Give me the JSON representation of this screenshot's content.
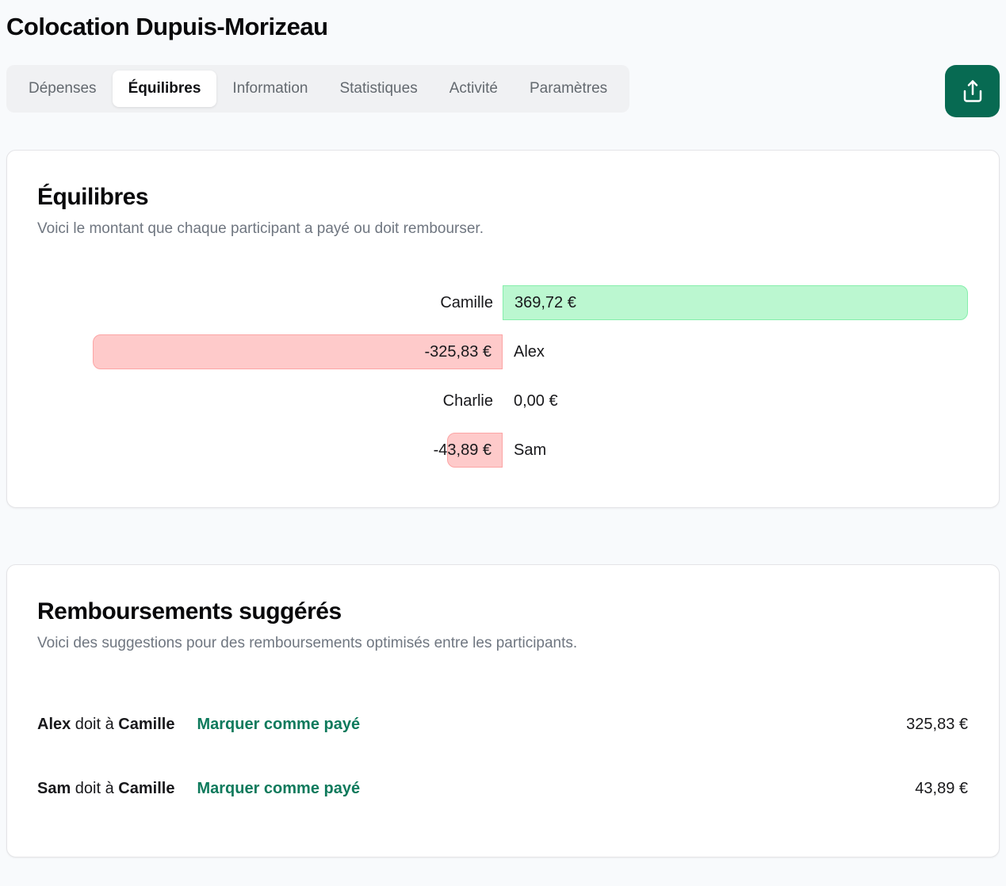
{
  "page": {
    "title": "Colocation Dupuis-Morizeau"
  },
  "tabs": [
    {
      "id": "depenses",
      "label": "Dépenses",
      "active": false
    },
    {
      "id": "equilibres",
      "label": "Équilibres",
      "active": true
    },
    {
      "id": "information",
      "label": "Information",
      "active": false
    },
    {
      "id": "statistiques",
      "label": "Statistiques",
      "active": false
    },
    {
      "id": "activite",
      "label": "Activité",
      "active": false
    },
    {
      "id": "parametres",
      "label": "Paramètres",
      "active": false
    }
  ],
  "share_button": {
    "icon": "share-upload-icon",
    "background": "#076a52"
  },
  "balances": {
    "title": "Équilibres",
    "subtitle": "Voici le montant que chaque participant a payé ou doit rembourser.",
    "max_abs_value": 369.72,
    "rows": [
      {
        "name": "Camille",
        "value": 369.72,
        "amount_label": "369,72 €"
      },
      {
        "name": "Alex",
        "value": -325.83,
        "amount_label": "-325,83 €"
      },
      {
        "name": "Charlie",
        "value": 0,
        "amount_label": "0,00 €"
      },
      {
        "name": "Sam",
        "value": -43.89,
        "amount_label": "-43,89 €"
      }
    ],
    "colors": {
      "positive_fill": "#bbf7d0",
      "positive_border": "#86efac",
      "negative_fill": "#fecaca",
      "negative_border": "#fca5a5"
    }
  },
  "reimbursements": {
    "title": "Remboursements suggérés",
    "subtitle": "Voici des suggestions pour des remboursements optimisés entre les participants.",
    "connector_label": "doit à",
    "mark_paid_label": "Marquer comme payé",
    "link_color": "#0e7a5c",
    "rows": [
      {
        "from": "Alex",
        "to": "Camille",
        "amount_label": "325,83 €"
      },
      {
        "from": "Sam",
        "to": "Camille",
        "amount_label": "43,89 €"
      }
    ]
  }
}
